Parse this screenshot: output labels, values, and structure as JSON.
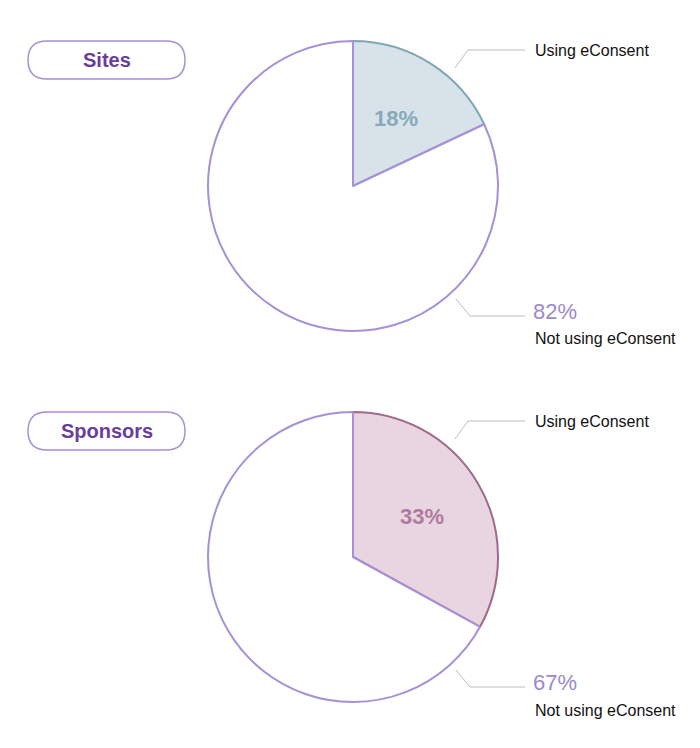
{
  "chart_data": [
    {
      "type": "pie",
      "title": "Sites",
      "categories": [
        "Using eConsent",
        "Not using eConsent"
      ],
      "values": [
        18,
        82
      ],
      "value_labels": [
        "18%",
        "82%"
      ],
      "colors": [
        "#d7e3e9",
        "#ffffff"
      ],
      "data_labels": true
    },
    {
      "type": "pie",
      "title": "Sponsors",
      "categories": [
        "Using eConsent",
        "Not using eConsent"
      ],
      "values": [
        33,
        67
      ],
      "value_labels": [
        "33%",
        "67%"
      ],
      "colors": [
        "#e9d4e1",
        "#ffffff"
      ],
      "data_labels": true
    }
  ]
}
